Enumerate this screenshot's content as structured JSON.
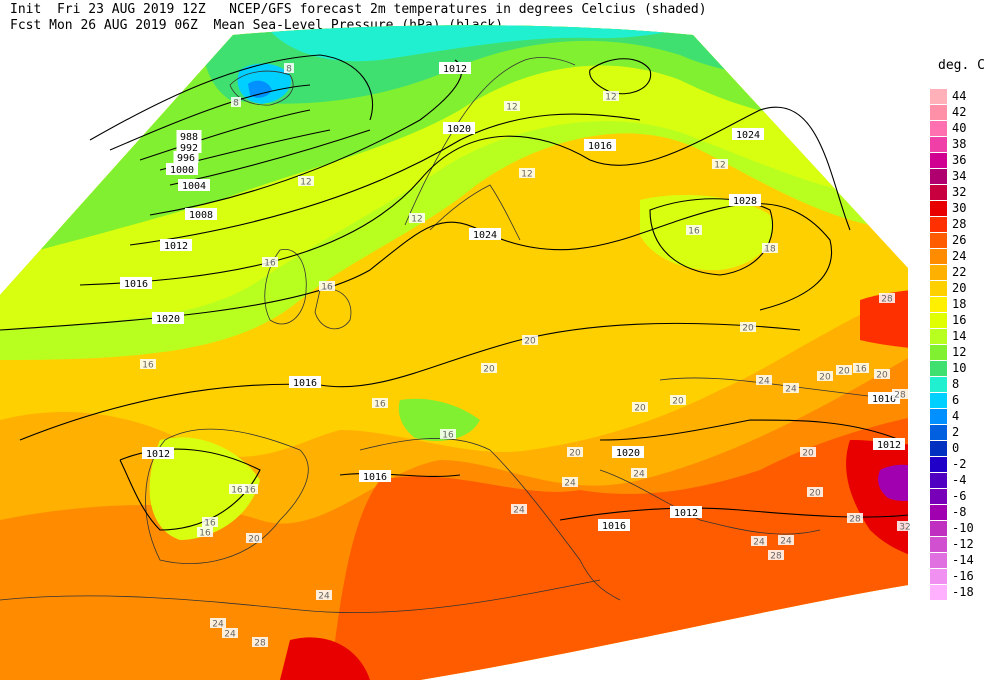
{
  "header": {
    "line1": "Init  Fri 23 AUG 2019 12Z   NCEP/GFS forecast 2m temperatures in degrees Celcius (shaded)",
    "line2": "Fcst Mon 26 AUG 2019 06Z  Mean Sea-Level Pressure (hPa) (black)."
  },
  "legend": {
    "title": "deg. C",
    "items": [
      {
        "label": "44",
        "color": "#ffb0b8"
      },
      {
        "label": "42",
        "color": "#ff90a8"
      },
      {
        "label": "40",
        "color": "#ff70b0"
      },
      {
        "label": "38",
        "color": "#f040a8"
      },
      {
        "label": "36",
        "color": "#d00090"
      },
      {
        "label": "34",
        "color": "#b00070"
      },
      {
        "label": "32",
        "color": "#c80040"
      },
      {
        "label": "30",
        "color": "#e80000"
      },
      {
        "label": "28",
        "color": "#ff3000"
      },
      {
        "label": "26",
        "color": "#ff5c00"
      },
      {
        "label": "24",
        "color": "#ff8c00"
      },
      {
        "label": "22",
        "color": "#ffb000"
      },
      {
        "label": "20",
        "color": "#ffd000"
      },
      {
        "label": "18",
        "color": "#fff000"
      },
      {
        "label": "16",
        "color": "#e0ff00"
      },
      {
        "label": "14",
        "color": "#b8ff20"
      },
      {
        "label": "12",
        "color": "#80f030"
      },
      {
        "label": "10",
        "color": "#40e070"
      },
      {
        "label": "8",
        "color": "#20f0d0"
      },
      {
        "label": "6",
        "color": "#00d0ff"
      },
      {
        "label": "4",
        "color": "#0090ff"
      },
      {
        "label": "2",
        "color": "#0060e0"
      },
      {
        "label": "0",
        "color": "#0030c0"
      },
      {
        "label": "-2",
        "color": "#2000c8"
      },
      {
        "label": "-4",
        "color": "#5000c0"
      },
      {
        "label": "-6",
        "color": "#7800b8"
      },
      {
        "label": "-8",
        "color": "#a000b0"
      },
      {
        "label": "-10",
        "color": "#c030c0"
      },
      {
        "label": "-12",
        "color": "#d050d0"
      },
      {
        "label": "-14",
        "color": "#e070e0"
      },
      {
        "label": "-16",
        "color": "#f090f0"
      },
      {
        "label": "-18",
        "color": "#ffb0ff"
      }
    ]
  },
  "isobar_labels": [
    {
      "text": "1012"
    },
    {
      "text": "1020"
    },
    {
      "text": "1016"
    },
    {
      "text": "1024"
    },
    {
      "text": "1028"
    },
    {
      "text": "988"
    },
    {
      "text": "992"
    },
    {
      "text": "996"
    },
    {
      "text": "1000"
    },
    {
      "text": "1004"
    },
    {
      "text": "1008"
    },
    {
      "text": "1012"
    },
    {
      "text": "1016"
    },
    {
      "text": "1020"
    },
    {
      "text": "1024"
    },
    {
      "text": "1016"
    },
    {
      "text": "1012"
    },
    {
      "text": "1016"
    },
    {
      "text": "1020"
    },
    {
      "text": "1016"
    },
    {
      "text": "1012"
    },
    {
      "text": "1012"
    },
    {
      "text": "1016"
    }
  ],
  "temp_labels": [
    {
      "text": "8"
    },
    {
      "text": "8"
    },
    {
      "text": "12"
    },
    {
      "text": "12"
    },
    {
      "text": "12"
    },
    {
      "text": "12"
    },
    {
      "text": "12"
    },
    {
      "text": "12"
    },
    {
      "text": "16"
    },
    {
      "text": "18"
    },
    {
      "text": "16"
    },
    {
      "text": "16"
    },
    {
      "text": "16"
    },
    {
      "text": "16"
    },
    {
      "text": "16"
    },
    {
      "text": "20"
    },
    {
      "text": "20"
    },
    {
      "text": "20"
    },
    {
      "text": "20"
    },
    {
      "text": "20"
    },
    {
      "text": "20"
    },
    {
      "text": "16"
    },
    {
      "text": "16"
    },
    {
      "text": "16"
    },
    {
      "text": "16"
    },
    {
      "text": "20"
    },
    {
      "text": "20"
    },
    {
      "text": "24"
    },
    {
      "text": "24"
    },
    {
      "text": "24"
    },
    {
      "text": "24"
    },
    {
      "text": "24"
    },
    {
      "text": "24"
    },
    {
      "text": "24"
    },
    {
      "text": "28"
    },
    {
      "text": "28"
    },
    {
      "text": "20"
    },
    {
      "text": "20"
    },
    {
      "text": "28"
    },
    {
      "text": "24"
    },
    {
      "text": "32"
    },
    {
      "text": "28"
    },
    {
      "text": "24"
    },
    {
      "text": "20"
    },
    {
      "text": "16"
    },
    {
      "text": "20"
    },
    {
      "text": "24"
    },
    {
      "text": "28"
    }
  ]
}
